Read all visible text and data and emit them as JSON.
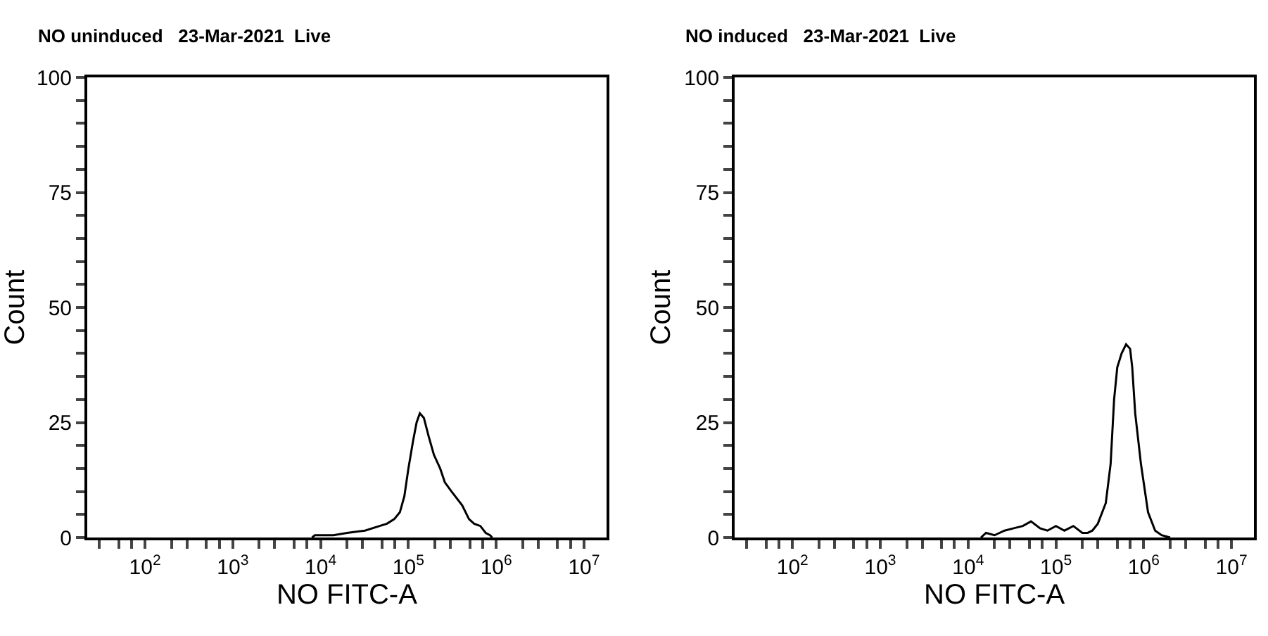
{
  "chart_data": [
    {
      "type": "line",
      "title": "NO uninduced   23-Mar-2021  Live",
      "xlabel": "NO FITC-A",
      "ylabel": "Count",
      "log": "x",
      "marker": "none",
      "line_style": "solid",
      "xlim": [
        22,
        18000000
      ],
      "ylim": [
        0,
        100
      ],
      "xticks": [
        {
          "value": 30,
          "label": null
        },
        {
          "value": 50,
          "label": null
        },
        {
          "value": 70,
          "label": null
        },
        {
          "value": 100,
          "label": "10$^{2}$"
        },
        {
          "value": 200,
          "label": null
        },
        {
          "value": 300,
          "label": null
        },
        {
          "value": 500,
          "label": null
        },
        {
          "value": 700,
          "label": null
        },
        {
          "value": 1000,
          "label": "10$^{3}$"
        },
        {
          "value": 2000,
          "label": null
        },
        {
          "value": 3000,
          "label": null
        },
        {
          "value": 5000,
          "label": null
        },
        {
          "value": 7000,
          "label": null
        },
        {
          "value": 10000,
          "label": "10$^{4}$"
        },
        {
          "value": 20000,
          "label": null
        },
        {
          "value": 30000,
          "label": null
        },
        {
          "value": 50000,
          "label": null
        },
        {
          "value": 70000,
          "label": null
        },
        {
          "value": 100000,
          "label": "10$^{5}$"
        },
        {
          "value": 200000,
          "label": null
        },
        {
          "value": 300000,
          "label": null
        },
        {
          "value": 500000,
          "label": null
        },
        {
          "value": 700000,
          "label": null
        },
        {
          "value": 1000000,
          "label": "10$^{6}$"
        },
        {
          "value": 2000000,
          "label": null
        },
        {
          "value": 3000000,
          "label": null
        },
        {
          "value": 5000000,
          "label": null
        },
        {
          "value": 7000000,
          "label": null
        },
        {
          "value": 10000000,
          "label": "10$^{7}$"
        }
      ],
      "yticks": [
        0,
        {
          "value": 5,
          "label": null
        },
        {
          "value": 10,
          "label": null
        },
        {
          "value": 15,
          "label": null
        },
        {
          "value": 20,
          "label": null
        },
        25,
        {
          "value": 30,
          "label": null
        },
        {
          "value": 35,
          "label": null
        },
        {
          "value": 40,
          "label": null
        },
        {
          "value": 45,
          "label": null
        },
        50,
        {
          "value": 55,
          "label": null
        },
        {
          "value": 60,
          "label": null
        },
        {
          "value": 65,
          "label": null
        },
        {
          "value": 70,
          "label": null
        },
        75,
        {
          "value": 80,
          "label": null
        },
        {
          "value": 85,
          "label": null
        },
        {
          "value": 90,
          "label": null
        },
        {
          "value": 95,
          "label": null
        },
        100
      ],
      "series": [
        {
          "color": "#000000",
          "x": [
            8000,
            8600,
            14000,
            20000,
            32000,
            47000,
            57000,
            69000,
            80000,
            90000,
            100000,
            113000,
            124000,
            135000,
            150000,
            170000,
            195000,
            230000,
            260000,
            310000,
            410000,
            490000,
            560000,
            660000,
            760000,
            850000,
            900000
          ],
          "values": [
            0,
            0.5,
            0.5,
            1,
            1.5,
            2.5,
            3,
            4,
            5.5,
            9,
            15,
            21,
            25,
            27,
            26,
            22,
            18,
            15,
            12,
            10,
            7,
            4,
            3,
            2.5,
            1,
            0.5,
            0
          ]
        }
      ]
    },
    {
      "type": "line",
      "title": "NO induced   23-Mar-2021  Live",
      "xlabel": "NO FITC-A",
      "ylabel": "Count",
      "log": "x",
      "marker": "none",
      "line_style": "solid",
      "xlim": [
        22,
        18000000
      ],
      "ylim": [
        0,
        100
      ],
      "xticks": [
        {
          "value": 30,
          "label": null
        },
        {
          "value": 50,
          "label": null
        },
        {
          "value": 70,
          "label": null
        },
        {
          "value": 100,
          "label": "10$^{2}$"
        },
        {
          "value": 200,
          "label": null
        },
        {
          "value": 300,
          "label": null
        },
        {
          "value": 500,
          "label": null
        },
        {
          "value": 700,
          "label": null
        },
        {
          "value": 1000,
          "label": "10$^{3}$"
        },
        {
          "value": 2000,
          "label": null
        },
        {
          "value": 3000,
          "label": null
        },
        {
          "value": 5000,
          "label": null
        },
        {
          "value": 7000,
          "label": null
        },
        {
          "value": 10000,
          "label": "10$^{4}$"
        },
        {
          "value": 20000,
          "label": null
        },
        {
          "value": 30000,
          "label": null
        },
        {
          "value": 50000,
          "label": null
        },
        {
          "value": 70000,
          "label": null
        },
        {
          "value": 100000,
          "label": "10$^{5}$"
        },
        {
          "value": 200000,
          "label": null
        },
        {
          "value": 300000,
          "label": null
        },
        {
          "value": 500000,
          "label": null
        },
        {
          "value": 700000,
          "label": null
        },
        {
          "value": 1000000,
          "label": "10$^{6}$"
        },
        {
          "value": 2000000,
          "label": null
        },
        {
          "value": 3000000,
          "label": null
        },
        {
          "value": 5000000,
          "label": null
        },
        {
          "value": 7000000,
          "label": null
        },
        {
          "value": 10000000,
          "label": "10$^{7}$"
        }
      ],
      "yticks": [
        0,
        {
          "value": 5,
          "label": null
        },
        {
          "value": 10,
          "label": null
        },
        {
          "value": 15,
          "label": null
        },
        {
          "value": 20,
          "label": null
        },
        25,
        {
          "value": 30,
          "label": null
        },
        {
          "value": 35,
          "label": null
        },
        {
          "value": 40,
          "label": null
        },
        {
          "value": 45,
          "label": null
        },
        50,
        {
          "value": 55,
          "label": null
        },
        {
          "value": 60,
          "label": null
        },
        {
          "value": 65,
          "label": null
        },
        {
          "value": 70,
          "label": null
        },
        75,
        {
          "value": 80,
          "label": null
        },
        {
          "value": 85,
          "label": null
        },
        {
          "value": 90,
          "label": null
        },
        {
          "value": 95,
          "label": null
        },
        100
      ],
      "series": [
        {
          "color": "#000000",
          "x": [
            14000,
            16000,
            20000,
            26000,
            33000,
            42000,
            52000,
            66000,
            80000,
            100000,
            125000,
            158000,
            200000,
            230000,
            260000,
            300000,
            370000,
            420000,
            460000,
            500000,
            560000,
            630000,
            700000,
            740000,
            800000,
            930000,
            1120000,
            1350000,
            1600000,
            2000000
          ],
          "values": [
            0,
            1,
            0.5,
            1.5,
            2,
            2.5,
            3.5,
            2,
            1.5,
            2.5,
            1.5,
            2.5,
            1,
            1,
            1.5,
            3,
            7.5,
            16,
            30,
            37,
            40,
            42,
            41,
            37,
            27,
            16,
            5.5,
            1.5,
            0.5,
            0
          ]
        }
      ]
    }
  ]
}
